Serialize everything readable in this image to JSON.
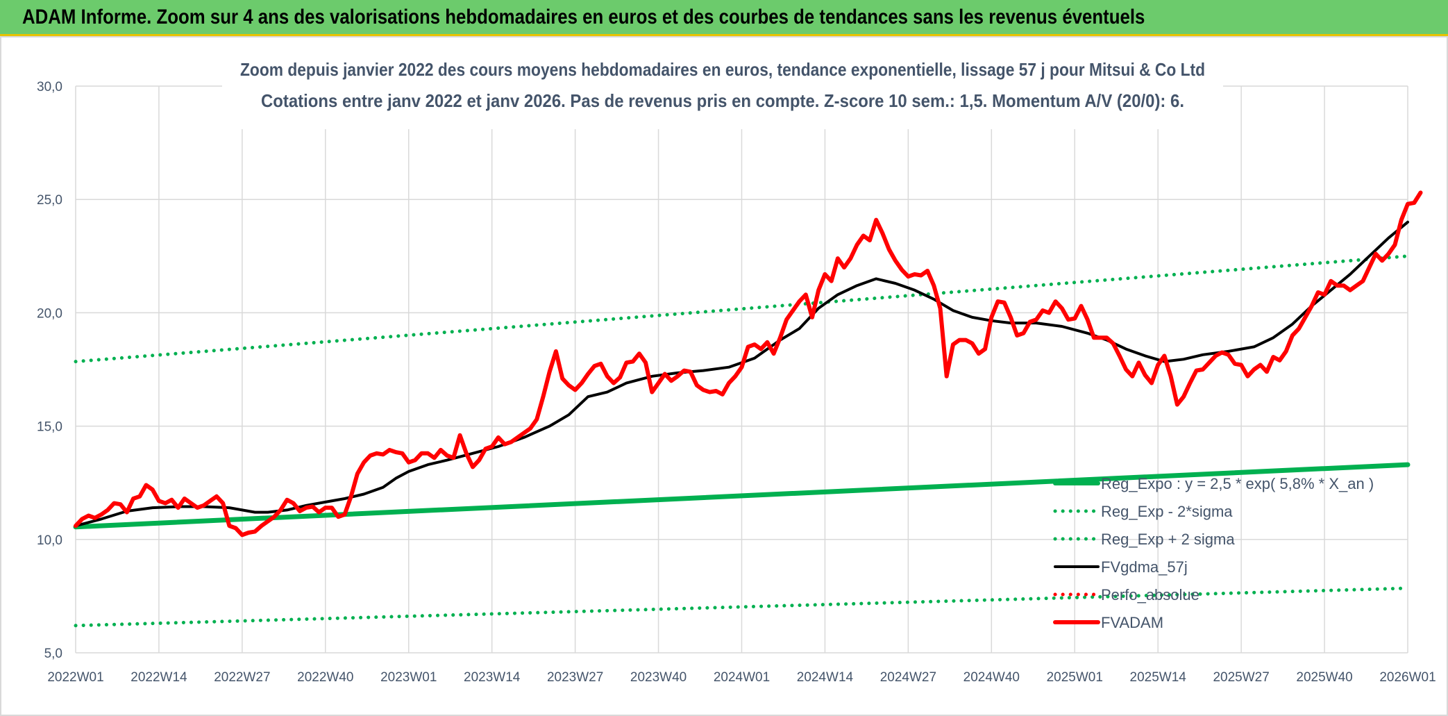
{
  "banner": {
    "title": "ADAM Informe. Zoom sur 4 ans des valorisations hebdomadaires en euros et des courbes de tendances sans les revenus éventuels"
  },
  "chart_data": {
    "type": "line",
    "title_line1": "Zoom depuis janvier 2022 des cours moyens hebdomadaires en euros, tendance exponentielle, lissage 57 j pour Mitsui & Co Ltd",
    "title_line2": "Cotations entre janv 2022 et janv 2026. Pas de revenus pris en compte. Z-score 10 sem.: 1,5. Momentum A/V (20/0): 6.",
    "x_tick_labels": [
      "2022W01",
      "2022W14",
      "2022W27",
      "2022W40",
      "2023W01",
      "2023W14",
      "2023W27",
      "2023W40",
      "2024W01",
      "2024W14",
      "2024W27",
      "2024W40",
      "2025W01",
      "2025W14",
      "2025W27",
      "2025W40",
      "2026W01"
    ],
    "x_tick_index": [
      0,
      13,
      26,
      39,
      52,
      65,
      78,
      91,
      104,
      117,
      130,
      143,
      156,
      169,
      182,
      195,
      208
    ],
    "y_ticks": [
      "5,0",
      "10,0",
      "15,0",
      "20,0",
      "25,0",
      "30,0"
    ],
    "ylim": [
      5,
      30
    ],
    "xlim": [
      0,
      208
    ],
    "grid": true,
    "legend_position": "bottom-right",
    "colors": {
      "reg": "#00b050",
      "dotted": "#00b050",
      "smooth": "#000000",
      "perfo": "#ff0000",
      "price": "#ff0000",
      "axis_text": "#44546a",
      "grid": "#d9d9d9"
    },
    "series": [
      {
        "name": "Reg_Expo : y = 2,5 * exp( 5,8% *  X_an )",
        "style": "solid-thick",
        "color": "#00b050",
        "points": [
          [
            0,
            10.55
          ],
          [
            208,
            13.3
          ]
        ]
      },
      {
        "name": "Reg_Exp - 2*sigma",
        "style": "dotted",
        "color": "#00b050",
        "points": [
          [
            0,
            6.2
          ],
          [
            208,
            7.85
          ]
        ]
      },
      {
        "name": "Reg_Exp + 2 sigma",
        "style": "dotted",
        "color": "#00b050",
        "points": [
          [
            0,
            17.85
          ],
          [
            208,
            22.5
          ]
        ]
      },
      {
        "name": "FVgdma_57j",
        "style": "solid",
        "color": "#000000",
        "points": [
          [
            0,
            10.6
          ],
          [
            4,
            10.9
          ],
          [
            8,
            11.25
          ],
          [
            12,
            11.4
          ],
          [
            16,
            11.45
          ],
          [
            20,
            11.45
          ],
          [
            24,
            11.4
          ],
          [
            26,
            11.3
          ],
          [
            28,
            11.2
          ],
          [
            30,
            11.2
          ],
          [
            33,
            11.3
          ],
          [
            36,
            11.5
          ],
          [
            39,
            11.65
          ],
          [
            42,
            11.8
          ],
          [
            45,
            12.0
          ],
          [
            48,
            12.3
          ],
          [
            50,
            12.7
          ],
          [
            52,
            13.0
          ],
          [
            55,
            13.3
          ],
          [
            58,
            13.5
          ],
          [
            62,
            13.8
          ],
          [
            66,
            14.1
          ],
          [
            70,
            14.5
          ],
          [
            74,
            15.0
          ],
          [
            77,
            15.5
          ],
          [
            80,
            16.3
          ],
          [
            83,
            16.5
          ],
          [
            86,
            16.9
          ],
          [
            90,
            17.2
          ],
          [
            94,
            17.35
          ],
          [
            98,
            17.45
          ],
          [
            102,
            17.6
          ],
          [
            106,
            18.0
          ],
          [
            110,
            18.8
          ],
          [
            113,
            19.3
          ],
          [
            116,
            20.2
          ],
          [
            119,
            20.8
          ],
          [
            122,
            21.2
          ],
          [
            125,
            21.5
          ],
          [
            128,
            21.3
          ],
          [
            131,
            21.0
          ],
          [
            134,
            20.6
          ],
          [
            137,
            20.1
          ],
          [
            140,
            19.8
          ],
          [
            143,
            19.65
          ],
          [
            146,
            19.55
          ],
          [
            150,
            19.55
          ],
          [
            154,
            19.4
          ],
          [
            158,
            19.1
          ],
          [
            161,
            18.8
          ],
          [
            164,
            18.4
          ],
          [
            167,
            18.1
          ],
          [
            170,
            17.85
          ],
          [
            173,
            17.95
          ],
          [
            176,
            18.15
          ],
          [
            180,
            18.3
          ],
          [
            184,
            18.5
          ],
          [
            187,
            18.9
          ],
          [
            190,
            19.5
          ],
          [
            193,
            20.3
          ],
          [
            196,
            21.0
          ],
          [
            199,
            21.7
          ],
          [
            202,
            22.5
          ],
          [
            205,
            23.3
          ],
          [
            208,
            24.0
          ]
        ]
      },
      {
        "name": "Perfo_absolue",
        "style": "dotted",
        "color": "#ff0000",
        "points": []
      },
      {
        "name": "FVADAM",
        "style": "solid-thick",
        "color": "#ff0000",
        "points": [
          [
            0,
            10.6
          ],
          [
            1,
            10.9
          ],
          [
            2,
            11.05
          ],
          [
            3,
            10.95
          ],
          [
            4,
            11.1
          ],
          [
            5,
            11.3
          ],
          [
            6,
            11.6
          ],
          [
            7,
            11.55
          ],
          [
            8,
            11.2
          ],
          [
            9,
            11.8
          ],
          [
            10,
            11.9
          ],
          [
            11,
            12.4
          ],
          [
            12,
            12.2
          ],
          [
            13,
            11.7
          ],
          [
            14,
            11.6
          ],
          [
            15,
            11.75
          ],
          [
            16,
            11.4
          ],
          [
            17,
            11.8
          ],
          [
            18,
            11.6
          ],
          [
            19,
            11.4
          ],
          [
            20,
            11.5
          ],
          [
            21,
            11.7
          ],
          [
            22,
            11.9
          ],
          [
            23,
            11.6
          ],
          [
            24,
            10.6
          ],
          [
            25,
            10.5
          ],
          [
            26,
            10.2
          ],
          [
            27,
            10.3
          ],
          [
            28,
            10.35
          ],
          [
            29,
            10.6
          ],
          [
            30,
            10.8
          ],
          [
            31,
            11.0
          ],
          [
            32,
            11.3
          ],
          [
            33,
            11.75
          ],
          [
            34,
            11.6
          ],
          [
            35,
            11.25
          ],
          [
            36,
            11.4
          ],
          [
            37,
            11.45
          ],
          [
            38,
            11.2
          ],
          [
            39,
            11.4
          ],
          [
            40,
            11.4
          ],
          [
            41,
            11.0
          ],
          [
            42,
            11.1
          ],
          [
            43,
            11.9
          ],
          [
            44,
            12.9
          ],
          [
            45,
            13.4
          ],
          [
            46,
            13.7
          ],
          [
            47,
            13.8
          ],
          [
            48,
            13.75
          ],
          [
            49,
            13.95
          ],
          [
            50,
            13.85
          ],
          [
            51,
            13.8
          ],
          [
            52,
            13.4
          ],
          [
            53,
            13.5
          ],
          [
            54,
            13.8
          ],
          [
            55,
            13.8
          ],
          [
            56,
            13.6
          ],
          [
            57,
            13.95
          ],
          [
            58,
            13.7
          ],
          [
            59,
            13.6
          ],
          [
            60,
            14.6
          ],
          [
            61,
            13.8
          ],
          [
            62,
            13.2
          ],
          [
            63,
            13.5
          ],
          [
            64,
            14.0
          ],
          [
            65,
            14.1
          ],
          [
            66,
            14.5
          ],
          [
            67,
            14.2
          ],
          [
            68,
            14.3
          ],
          [
            69,
            14.5
          ],
          [
            70,
            14.7
          ],
          [
            71,
            14.9
          ],
          [
            72,
            15.3
          ],
          [
            73,
            16.3
          ],
          [
            74,
            17.4
          ],
          [
            75,
            18.3
          ],
          [
            76,
            17.1
          ],
          [
            77,
            16.8
          ],
          [
            78,
            16.6
          ],
          [
            79,
            16.9
          ],
          [
            80,
            17.3
          ],
          [
            81,
            17.65
          ],
          [
            82,
            17.75
          ],
          [
            83,
            17.2
          ],
          [
            84,
            16.9
          ],
          [
            85,
            17.15
          ],
          [
            86,
            17.8
          ],
          [
            87,
            17.85
          ],
          [
            88,
            18.2
          ],
          [
            89,
            17.8
          ],
          [
            90,
            16.5
          ],
          [
            91,
            16.9
          ],
          [
            92,
            17.3
          ],
          [
            93,
            17.0
          ],
          [
            94,
            17.2
          ],
          [
            95,
            17.45
          ],
          [
            96,
            17.4
          ],
          [
            97,
            16.8
          ],
          [
            98,
            16.6
          ],
          [
            99,
            16.5
          ],
          [
            100,
            16.55
          ],
          [
            101,
            16.4
          ],
          [
            102,
            16.9
          ],
          [
            103,
            17.2
          ],
          [
            104,
            17.6
          ],
          [
            105,
            18.5
          ],
          [
            106,
            18.6
          ],
          [
            107,
            18.4
          ],
          [
            108,
            18.7
          ],
          [
            109,
            18.2
          ],
          [
            110,
            18.9
          ],
          [
            111,
            19.7
          ],
          [
            112,
            20.1
          ],
          [
            113,
            20.5
          ],
          [
            114,
            20.8
          ],
          [
            115,
            19.8
          ],
          [
            116,
            21.0
          ],
          [
            117,
            21.7
          ],
          [
            118,
            21.4
          ],
          [
            119,
            22.4
          ],
          [
            120,
            22.0
          ],
          [
            121,
            22.4
          ],
          [
            122,
            23.0
          ],
          [
            123,
            23.4
          ],
          [
            124,
            23.2
          ],
          [
            125,
            24.1
          ],
          [
            126,
            23.5
          ],
          [
            127,
            22.8
          ],
          [
            128,
            22.3
          ],
          [
            129,
            21.9
          ],
          [
            130,
            21.6
          ],
          [
            131,
            21.7
          ],
          [
            132,
            21.65
          ],
          [
            133,
            21.85
          ],
          [
            134,
            21.2
          ],
          [
            135,
            20.2
          ],
          [
            136,
            17.2
          ],
          [
            137,
            18.6
          ],
          [
            138,
            18.8
          ],
          [
            139,
            18.8
          ],
          [
            140,
            18.65
          ],
          [
            141,
            18.2
          ],
          [
            142,
            18.4
          ],
          [
            143,
            19.8
          ],
          [
            144,
            20.5
          ],
          [
            145,
            20.45
          ],
          [
            146,
            19.8
          ],
          [
            147,
            19.0
          ],
          [
            148,
            19.1
          ],
          [
            149,
            19.6
          ],
          [
            150,
            19.7
          ],
          [
            151,
            20.1
          ],
          [
            152,
            20.0
          ],
          [
            153,
            20.5
          ],
          [
            154,
            20.2
          ],
          [
            155,
            19.7
          ],
          [
            156,
            19.75
          ],
          [
            157,
            20.3
          ],
          [
            158,
            19.7
          ],
          [
            159,
            18.9
          ],
          [
            160,
            18.9
          ],
          [
            161,
            18.9
          ],
          [
            162,
            18.65
          ],
          [
            163,
            18.1
          ],
          [
            164,
            17.5
          ],
          [
            165,
            17.2
          ],
          [
            166,
            17.8
          ],
          [
            167,
            17.25
          ],
          [
            168,
            16.9
          ],
          [
            169,
            17.7
          ],
          [
            170,
            18.1
          ],
          [
            171,
            17.2
          ],
          [
            172,
            15.95
          ],
          [
            173,
            16.3
          ],
          [
            174,
            16.9
          ],
          [
            175,
            17.45
          ],
          [
            176,
            17.5
          ],
          [
            177,
            17.8
          ],
          [
            178,
            18.1
          ],
          [
            179,
            18.25
          ],
          [
            180,
            18.15
          ],
          [
            181,
            17.75
          ],
          [
            182,
            17.7
          ],
          [
            183,
            17.2
          ],
          [
            184,
            17.5
          ],
          [
            185,
            17.7
          ],
          [
            186,
            17.4
          ],
          [
            187,
            18.05
          ],
          [
            188,
            17.9
          ],
          [
            189,
            18.3
          ],
          [
            190,
            19.0
          ],
          [
            191,
            19.3
          ],
          [
            192,
            19.8
          ],
          [
            193,
            20.3
          ],
          [
            194,
            20.9
          ],
          [
            195,
            20.8
          ],
          [
            196,
            21.4
          ],
          [
            197,
            21.2
          ],
          [
            198,
            21.2
          ],
          [
            199,
            21.0
          ],
          [
            200,
            21.2
          ],
          [
            201,
            21.4
          ],
          [
            202,
            22.0
          ],
          [
            203,
            22.6
          ],
          [
            204,
            22.3
          ],
          [
            205,
            22.6
          ],
          [
            206,
            23.0
          ],
          [
            207,
            24.1
          ],
          [
            208,
            24.8
          ],
          [
            209,
            24.85
          ],
          [
            210,
            25.3
          ]
        ]
      }
    ]
  }
}
